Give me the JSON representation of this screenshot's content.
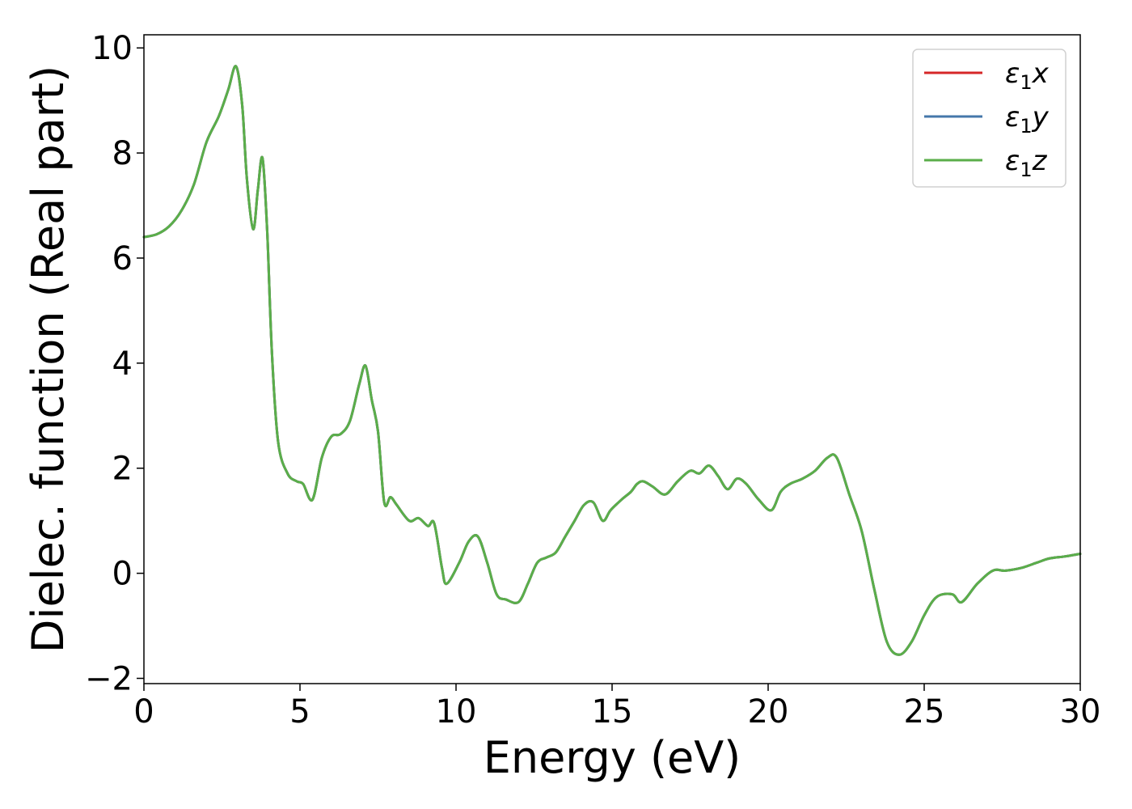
{
  "chart_data": {
    "type": "line",
    "xlabel": "Energy (eV)",
    "ylabel": "Dielec. function (Real part)",
    "xlim": [
      0,
      30
    ],
    "ylim": [
      -2.1,
      10.25
    ],
    "xticks": [
      0,
      5,
      10,
      15,
      20,
      25,
      30
    ],
    "xtick_labels": [
      "0",
      "5",
      "10",
      "15",
      "20",
      "25",
      "30"
    ],
    "yticks": [
      -2,
      0,
      2,
      4,
      6,
      8,
      10
    ],
    "ytick_labels": [
      "−2",
      "0",
      "2",
      "4",
      "6",
      "8",
      "10"
    ],
    "grid": false,
    "legend_position": "top-right",
    "x": [
      0,
      0.4,
      0.8,
      1.2,
      1.6,
      2.0,
      2.4,
      2.7,
      2.95,
      3.15,
      3.3,
      3.5,
      3.65,
      3.8,
      3.95,
      4.1,
      4.3,
      4.6,
      4.9,
      5.1,
      5.4,
      5.7,
      6.0,
      6.3,
      6.6,
      6.9,
      7.1,
      7.3,
      7.5,
      7.7,
      7.9,
      8.1,
      8.5,
      8.8,
      9.1,
      9.3,
      9.55,
      9.7,
      10.1,
      10.4,
      10.7,
      11.0,
      11.3,
      11.6,
      12.0,
      12.3,
      12.6,
      12.9,
      13.2,
      13.5,
      13.8,
      14.1,
      14.4,
      14.7,
      14.95,
      15.3,
      15.6,
      15.8,
      16.0,
      16.3,
      16.7,
      17.1,
      17.5,
      17.8,
      18.1,
      18.4,
      18.7,
      19.0,
      19.3,
      19.7,
      20.1,
      20.4,
      20.7,
      21.1,
      21.5,
      21.9,
      22.2,
      22.6,
      23.0,
      23.4,
      23.8,
      24.2,
      24.6,
      25.0,
      25.4,
      25.9,
      26.2,
      26.7,
      27.2,
      27.6,
      28.1,
      28.6,
      29.0,
      29.5,
      30.0
    ],
    "series": [
      {
        "name": "ε₁x",
        "label_symbol": "ε",
        "label_sub": "1",
        "label_var": "x",
        "color": "#d62728",
        "values": [
          6.4,
          6.45,
          6.6,
          6.9,
          7.4,
          8.2,
          8.7,
          9.2,
          9.65,
          8.9,
          7.5,
          6.55,
          7.3,
          7.9,
          6.5,
          4.2,
          2.5,
          1.9,
          1.75,
          1.7,
          1.4,
          2.2,
          2.6,
          2.65,
          2.9,
          3.6,
          3.95,
          3.3,
          2.7,
          1.35,
          1.45,
          1.3,
          1.0,
          1.05,
          0.9,
          0.95,
          0.1,
          -0.2,
          0.2,
          0.6,
          0.7,
          0.2,
          -0.4,
          -0.5,
          -0.55,
          -0.2,
          0.2,
          0.3,
          0.4,
          0.7,
          1.0,
          1.3,
          1.35,
          1.0,
          1.2,
          1.4,
          1.55,
          1.7,
          1.75,
          1.65,
          1.5,
          1.75,
          1.95,
          1.9,
          2.05,
          1.85,
          1.6,
          1.8,
          1.7,
          1.4,
          1.2,
          1.55,
          1.7,
          1.8,
          1.95,
          2.2,
          2.2,
          1.5,
          0.8,
          -0.3,
          -1.3,
          -1.55,
          -1.3,
          -0.8,
          -0.45,
          -0.4,
          -0.55,
          -0.2,
          0.05,
          0.05,
          0.1,
          0.2,
          0.28,
          0.32,
          0.37
        ]
      },
      {
        "name": "ε₁y",
        "label_symbol": "ε",
        "label_sub": "1",
        "label_var": "y",
        "color": "#4477aa",
        "values": [
          6.4,
          6.45,
          6.6,
          6.9,
          7.4,
          8.2,
          8.7,
          9.2,
          9.65,
          8.9,
          7.5,
          6.55,
          7.3,
          7.9,
          6.5,
          4.2,
          2.5,
          1.9,
          1.75,
          1.7,
          1.4,
          2.2,
          2.6,
          2.65,
          2.9,
          3.6,
          3.95,
          3.3,
          2.7,
          1.35,
          1.45,
          1.3,
          1.0,
          1.05,
          0.9,
          0.95,
          0.1,
          -0.2,
          0.2,
          0.6,
          0.7,
          0.2,
          -0.4,
          -0.5,
          -0.55,
          -0.2,
          0.2,
          0.3,
          0.4,
          0.7,
          1.0,
          1.3,
          1.35,
          1.0,
          1.2,
          1.4,
          1.55,
          1.7,
          1.75,
          1.65,
          1.5,
          1.75,
          1.95,
          1.9,
          2.05,
          1.85,
          1.6,
          1.8,
          1.7,
          1.4,
          1.2,
          1.55,
          1.7,
          1.8,
          1.95,
          2.2,
          2.2,
          1.5,
          0.8,
          -0.3,
          -1.3,
          -1.55,
          -1.3,
          -0.8,
          -0.45,
          -0.4,
          -0.55,
          -0.2,
          0.05,
          0.05,
          0.1,
          0.2,
          0.28,
          0.32,
          0.37
        ]
      },
      {
        "name": "ε₁z",
        "label_symbol": "ε",
        "label_sub": "1",
        "label_var": "z",
        "color": "#5aae4a",
        "values": [
          6.4,
          6.45,
          6.6,
          6.9,
          7.4,
          8.2,
          8.7,
          9.2,
          9.65,
          8.9,
          7.5,
          6.55,
          7.3,
          7.9,
          6.5,
          4.2,
          2.5,
          1.9,
          1.75,
          1.7,
          1.4,
          2.2,
          2.6,
          2.65,
          2.9,
          3.6,
          3.95,
          3.3,
          2.7,
          1.35,
          1.45,
          1.3,
          1.0,
          1.05,
          0.9,
          0.95,
          0.1,
          -0.2,
          0.2,
          0.6,
          0.7,
          0.2,
          -0.4,
          -0.5,
          -0.55,
          -0.2,
          0.2,
          0.3,
          0.4,
          0.7,
          1.0,
          1.3,
          1.35,
          1.0,
          1.2,
          1.4,
          1.55,
          1.7,
          1.75,
          1.65,
          1.5,
          1.75,
          1.95,
          1.9,
          2.05,
          1.85,
          1.6,
          1.8,
          1.7,
          1.4,
          1.2,
          1.55,
          1.7,
          1.8,
          1.95,
          2.2,
          2.2,
          1.5,
          0.8,
          -0.3,
          -1.3,
          -1.55,
          -1.3,
          -0.8,
          -0.45,
          -0.4,
          -0.55,
          -0.2,
          0.05,
          0.05,
          0.1,
          0.2,
          0.28,
          0.32,
          0.37
        ]
      }
    ]
  }
}
